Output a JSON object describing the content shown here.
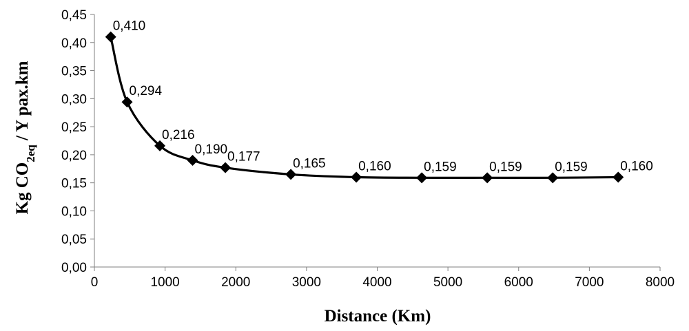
{
  "chart_data": {
    "type": "scatter",
    "title": "",
    "xlabel": "Distance (Km)",
    "ylabel": {
      "prefix": "Kg CO",
      "subscript": "2eq",
      "suffix": " / Y pax.km"
    },
    "xlim": [
      0,
      8000
    ],
    "ylim": [
      0,
      0.45
    ],
    "xticks": [
      0,
      1000,
      2000,
      3000,
      4000,
      5000,
      6000,
      7000,
      8000
    ],
    "xtick_labels": [
      "0",
      "1000",
      "2000",
      "3000",
      "4000",
      "5000",
      "6000",
      "7000",
      "8000"
    ],
    "yticks": [
      0,
      0.05,
      0.1,
      0.15,
      0.2,
      0.25,
      0.3,
      0.35,
      0.4,
      0.45
    ],
    "ytick_labels": [
      "0,00",
      "0,05",
      "0,10",
      "0,15",
      "0,20",
      "0,25",
      "0,30",
      "0,35",
      "0,40",
      "0,45"
    ],
    "grid": false,
    "legend": "none",
    "line_style": "smooth",
    "marker": "diamond",
    "color": "#000000",
    "series": [
      {
        "x": [
          231,
          463,
          926,
          1389,
          1852,
          2778,
          3704,
          4630,
          5556,
          6482,
          7408
        ],
        "y": [
          0.41,
          0.294,
          0.216,
          0.19,
          0.177,
          0.165,
          0.16,
          0.159,
          0.159,
          0.159,
          0.16
        ],
        "labels": [
          "0,410",
          "0,294",
          "0,216",
          "0,190",
          "0,177",
          "0,165",
          "0,160",
          "0,159",
          "0,159",
          "0,159",
          "0,160"
        ]
      }
    ]
  }
}
